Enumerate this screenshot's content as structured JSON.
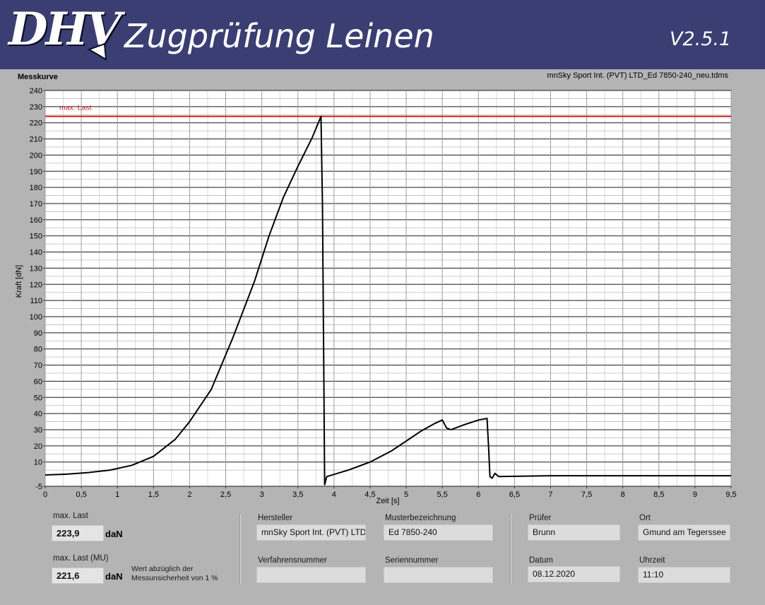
{
  "header": {
    "logo_text": "DHV",
    "title": "Zugprüfung Leinen",
    "version": "V2.5.1",
    "background": "#3a3e72"
  },
  "graph": {
    "label": "Messkurve",
    "file_name": "mnSky Sport Int. (PVT) LTD_Ed 7850-240_neu.tdms"
  },
  "chart_data": {
    "type": "line",
    "title": "",
    "xlabel": "Zeit [s]",
    "ylabel": "Kraft [dN]",
    "xlim": [
      0,
      9.5
    ],
    "ylim": [
      -5,
      240
    ],
    "x_ticks": [
      "0",
      "0,5",
      "1",
      "1,5",
      "2",
      "2,5",
      "3",
      "3,5",
      "4",
      "4,5",
      "5",
      "5,5",
      "6",
      "6,5",
      "7",
      "7,5",
      "8",
      "8,5",
      "9",
      "9,5"
    ],
    "y_ticks": [
      "-5",
      "10",
      "20",
      "30",
      "40",
      "50",
      "60",
      "70",
      "80",
      "90",
      "100",
      "110",
      "120",
      "130",
      "140",
      "150",
      "160",
      "170",
      "180",
      "190",
      "200",
      "210",
      "220",
      "230",
      "240"
    ],
    "grid": true,
    "line_color": "#000000",
    "reference_line": {
      "label": "max. Last",
      "value": 224,
      "color": "#cc1f1f"
    },
    "series": [
      {
        "points": [
          [
            0,
            2
          ],
          [
            0.3,
            2.5
          ],
          [
            0.6,
            3.5
          ],
          [
            0.9,
            5
          ],
          [
            1.2,
            8
          ],
          [
            1.5,
            13.5
          ],
          [
            1.8,
            24
          ],
          [
            2.0,
            35
          ],
          [
            2.3,
            55
          ],
          [
            2.6,
            87
          ],
          [
            2.9,
            122
          ],
          [
            3.1,
            150
          ],
          [
            3.3,
            174
          ],
          [
            3.5,
            193
          ],
          [
            3.7,
            211
          ],
          [
            3.82,
            224
          ],
          [
            3.84,
            170
          ],
          [
            3.86,
            60
          ],
          [
            3.87,
            -4
          ],
          [
            3.9,
            1
          ],
          [
            4.2,
            5
          ],
          [
            4.5,
            10
          ],
          [
            4.8,
            17
          ],
          [
            5.0,
            23
          ],
          [
            5.2,
            29
          ],
          [
            5.4,
            34
          ],
          [
            5.5,
            36
          ],
          [
            5.56,
            31
          ],
          [
            5.62,
            30
          ],
          [
            5.8,
            33
          ],
          [
            6.0,
            36
          ],
          [
            6.12,
            37
          ],
          [
            6.14,
            20
          ],
          [
            6.16,
            1
          ],
          [
            6.19,
            0
          ],
          [
            6.23,
            3
          ],
          [
            6.28,
            1
          ],
          [
            7.0,
            1.5
          ],
          [
            8.0,
            1.5
          ],
          [
            9.0,
            1.5
          ],
          [
            9.5,
            1.5
          ]
        ]
      }
    ]
  },
  "info": {
    "max_last_label": "max. Last",
    "max_last_value": "223,9",
    "max_last_unit": "daN",
    "max_last_mu_label": "max. Last (MU)",
    "max_last_mu_value": "221,6",
    "max_last_mu_unit": "daN",
    "note_line1": "Wert abzüglich der",
    "note_line2": "Messunsicherheit von 1 %",
    "hersteller_label": "Hersteller",
    "hersteller_value": "mnSky Sport Int. (PVT) LTD",
    "musterbezeichnung_label": "Musterbezeichnung",
    "musterbezeichnung_value": "Ed 7850-240",
    "verfahrensnummer_label": "Verfahrensnummer",
    "verfahrensnummer_value": "",
    "seriennummer_label": "Seriennummer",
    "seriennummer_value": "",
    "pruefer_label": "Prüfer",
    "pruefer_value": "Brunn",
    "ort_label": "Ort",
    "ort_value": "Gmund am Tegerssee",
    "datum_label": "Datum",
    "datum_value": "08.12.2020",
    "uhrzeit_label": "Uhrzeit",
    "uhrzeit_value": "11:10"
  }
}
